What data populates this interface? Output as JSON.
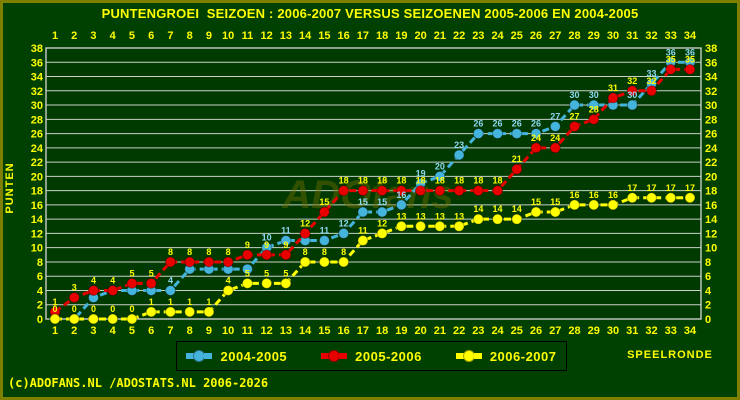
{
  "title": "PUNTENGROEI  SEIZOEN : 2006-2007 VERSUS SEIZOENEN 2005-2006 EN 2004-2005",
  "watermark": "ADOfans",
  "footer": "(c)ADOFANS.NL /ADOSTATS.NL 2006-2026",
  "axes": {
    "x_label": "SPEELRONDE",
    "y_label": "PUNTEN",
    "y_min": 0,
    "y_max": 38,
    "y_step": 2
  },
  "chart_data": {
    "type": "line",
    "title": "PUNTENGROEI SEIZOEN : 2006-2007 VERSUS SEIZOENEN 2005-2006 EN 2004-2005",
    "xlabel": "SPEELRONDE",
    "ylabel": "PUNTEN",
    "x": [
      1,
      2,
      3,
      4,
      5,
      6,
      7,
      8,
      9,
      10,
      11,
      12,
      13,
      14,
      15,
      16,
      17,
      18,
      19,
      20,
      21,
      22,
      23,
      24,
      25,
      26,
      27,
      28,
      29,
      30,
      31,
      32,
      33,
      34
    ],
    "ylim": [
      0,
      38
    ],
    "y_ticks": [
      38,
      36,
      34,
      32,
      30,
      28,
      26,
      24,
      22,
      20,
      18,
      16,
      14,
      12,
      10,
      8,
      6,
      4,
      2,
      0
    ],
    "grid": "horizontal-only",
    "legend_position": "bottom-center",
    "series": [
      {
        "name": "2004-2005",
        "color": "#45B4DC",
        "label_color": "#8CD8F0",
        "marker": "circle",
        "linestyle": "dashed",
        "values": [
          0,
          0,
          3,
          4,
          4,
          4,
          4,
          7,
          7,
          7,
          7,
          10,
          11,
          11,
          11,
          12,
          15,
          15,
          16,
          19,
          20,
          23,
          26,
          26,
          26,
          26,
          27,
          30,
          30,
          30,
          30,
          33,
          36,
          36
        ],
        "hidden_value_labels_at_x": [
          1,
          2,
          3,
          4,
          5,
          6,
          8,
          9,
          10,
          11,
          14,
          30
        ]
      },
      {
        "name": "2005-2006",
        "color": "#E80000",
        "label_color": "#FFFF00",
        "marker": "circle",
        "linestyle": "dashed",
        "values": [
          1,
          3,
          4,
          4,
          5,
          5,
          8,
          8,
          8,
          8,
          9,
          9,
          9,
          12,
          15,
          18,
          18,
          18,
          18,
          18,
          18,
          18,
          18,
          18,
          21,
          24,
          24,
          27,
          28,
          31,
          32,
          32,
          35,
          35
        ],
        "hidden_value_labels_at_x": []
      },
      {
        "name": "2006-2007",
        "color": "#FFFF00",
        "label_color": "#FFFF00",
        "marker": "circle",
        "linestyle": "dashed",
        "values": [
          0,
          0,
          0,
          0,
          0,
          1,
          1,
          1,
          1,
          4,
          5,
          5,
          5,
          8,
          8,
          8,
          11,
          12,
          13,
          13,
          13,
          13,
          14,
          14,
          14,
          15,
          15,
          16,
          16,
          16,
          17,
          17,
          17,
          17
        ],
        "hidden_value_labels_at_x": []
      }
    ]
  },
  "colors": {
    "background": "#004000",
    "plot_background": "#003A00",
    "border": "#808000",
    "grid": "#C8D2C8",
    "frame": "#D8D8D8",
    "text": "#FFFF00",
    "legend_border": "#000000",
    "watermark": "#6E6E00"
  }
}
